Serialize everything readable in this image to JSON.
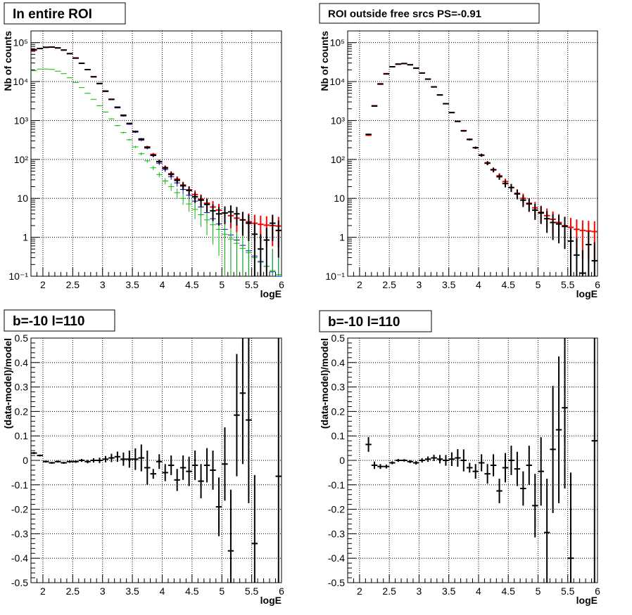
{
  "chart_data": [
    {
      "type": "scatter",
      "title": "In entire ROI",
      "xlabel": "logE",
      "ylabel": "Nb of counts",
      "xlim": [
        1.8,
        6.0
      ],
      "ylim": [
        0.1,
        200000
      ],
      "yscale": "log",
      "grid": true,
      "x_ticks": [
        "2",
        "2.5",
        "3",
        "3.5",
        "4",
        "4.5",
        "5",
        "5.5",
        "6"
      ],
      "y_ticks": [
        "10⁻¹",
        "1",
        "10",
        "10²",
        "10³",
        "10⁴",
        "10⁵"
      ],
      "series": [
        {
          "color": "#0000cc",
          "x": [
            1.85,
            1.95,
            2.05,
            2.15,
            2.25,
            2.35,
            2.45,
            2.55,
            2.65,
            2.75,
            2.85,
            2.95,
            3.05,
            3.15,
            3.25,
            3.35,
            3.45,
            3.55,
            3.65,
            3.75,
            3.85,
            3.95,
            4.05,
            4.15,
            4.25,
            4.35,
            4.45,
            4.55,
            4.65,
            4.75,
            4.85,
            4.95,
            5.05,
            5.15,
            5.25,
            5.35,
            5.45,
            5.55,
            5.65,
            5.75,
            5.85,
            5.95
          ],
          "y": [
            63000,
            70000,
            75000,
            76000,
            73000,
            64000,
            52000,
            40000,
            29000,
            20000,
            13000,
            8700,
            5500,
            3400,
            2100,
            1300,
            800,
            500,
            310,
            195,
            125,
            80,
            55,
            36,
            25,
            17,
            12,
            8.5,
            6,
            4.3,
            3,
            2.2,
            1.6,
            1.15,
            0.85,
            0.62,
            0.45,
            0.33,
            0.24,
            0.18,
            0.13,
            0.1
          ]
        },
        {
          "color": "#00bb00",
          "x": [
            1.85,
            1.95,
            2.05,
            2.15,
            2.25,
            2.35,
            2.45,
            2.55,
            2.65,
            2.75,
            2.85,
            2.95,
            3.05,
            3.15,
            3.25,
            3.35,
            3.45,
            3.55,
            3.65,
            3.75,
            3.85,
            3.95,
            4.05,
            4.15,
            4.25,
            4.35,
            4.45,
            4.55,
            4.65,
            4.75,
            4.85,
            4.95,
            5.05,
            5.15,
            5.25,
            5.35,
            5.45,
            5.55,
            5.65,
            5.75,
            5.85,
            5.95
          ],
          "y": [
            19000,
            21000,
            21000,
            20500,
            18500,
            16000,
            12500,
            9500,
            7000,
            5000,
            3500,
            2400,
            1650,
            1100,
            740,
            490,
            320,
            210,
            140,
            92,
            61,
            41,
            28,
            20,
            14,
            10,
            7.2,
            5.2,
            3.8,
            2.8,
            2.1,
            1.6,
            1.2,
            0.9,
            0.7,
            0.52,
            0.4,
            0.3,
            0.23,
            0.18,
            0.14,
            0.11
          ]
        },
        {
          "color": "#ff0000",
          "x": [
            1.85,
            1.95,
            2.05,
            2.15,
            2.25,
            2.35,
            2.45,
            2.55,
            2.65,
            2.75,
            2.85,
            2.95,
            3.05,
            3.15,
            3.25,
            3.35,
            3.45,
            3.55,
            3.65,
            3.75,
            3.85,
            3.95,
            4.05,
            4.15,
            4.25,
            4.35,
            4.45,
            4.55,
            4.65,
            4.75,
            4.85,
            4.95,
            5.05,
            5.15,
            5.25,
            5.35,
            5.45,
            5.55,
            5.65,
            5.75,
            5.85,
            5.95
          ],
          "y": [
            64000,
            71000,
            76000,
            77000,
            73500,
            64500,
            52500,
            40500,
            29500,
            20300,
            13300,
            8900,
            5700,
            3500,
            2200,
            1360,
            840,
            525,
            330,
            210,
            135,
            88,
            62,
            43,
            31,
            22,
            16.5,
            12.5,
            9.5,
            7.5,
            6,
            5,
            4.2,
            3.6,
            3.1,
            2.8,
            2.5,
            2.3,
            2.15,
            2.05,
            2,
            1.95
          ],
          "err": [
            250,
            270,
            280,
            280,
            270,
            250,
            230,
            200,
            170,
            140,
            115,
            95,
            75,
            60,
            47,
            37,
            29,
            23,
            18,
            14.5,
            11.6,
            9.4,
            7.9,
            6.6,
            5.6,
            4.7,
            4.1,
            3.5,
            3.1,
            2.7,
            2.5,
            2.2,
            2.05,
            1.9,
            1.75,
            1.65,
            1.6,
            1.5,
            1.45,
            1.43,
            1.41,
            1.4
          ]
        },
        {
          "color": "#000000",
          "x": [
            1.85,
            1.95,
            2.05,
            2.15,
            2.25,
            2.35,
            2.45,
            2.55,
            2.65,
            2.75,
            2.85,
            2.95,
            3.05,
            3.15,
            3.25,
            3.35,
            3.45,
            3.55,
            3.65,
            3.75,
            3.85,
            3.95,
            4.05,
            4.15,
            4.25,
            4.35,
            4.45,
            4.55,
            4.65,
            4.75,
            4.85,
            4.95,
            5.05,
            5.15,
            5.25,
            5.35,
            5.45,
            5.55,
            5.65,
            5.75,
            5.85,
            5.95
          ],
          "y": [
            66000,
            70500,
            76000,
            77000,
            73000,
            64500,
            52000,
            40000,
            29500,
            20300,
            13300,
            8900,
            5700,
            3500,
            2200,
            1370,
            840,
            525,
            335,
            203,
            128,
            88,
            60,
            41,
            29,
            21,
            16,
            11,
            9,
            7,
            4.8,
            4,
            4.2,
            4.5,
            4,
            2.8,
            2.3,
            1.2,
            0.5,
            0.85,
            2.3,
            1.5
          ],
          "err": [
            260,
            270,
            280,
            280,
            270,
            255,
            230,
            200,
            170,
            140,
            115,
            95,
            75,
            59,
            47,
            37,
            29,
            23,
            18,
            14.2,
            11.3,
            9.4,
            7.7,
            6.4,
            5.4,
            4.6,
            4,
            3.3,
            3,
            2.6,
            2.2,
            2,
            2,
            2.1,
            2,
            1.7,
            1.5,
            1.1,
            0.7,
            0.9,
            1.5,
            1.2
          ]
        }
      ]
    },
    {
      "type": "scatter",
      "title": "ROI outside free srcs PS=-0.91",
      "xlabel": "logE",
      "ylabel": "Nb of counts",
      "xlim": [
        1.8,
        6.0
      ],
      "ylim": [
        0.1,
        200000
      ],
      "yscale": "log",
      "grid": true,
      "x_ticks": [
        "2",
        "2.5",
        "3",
        "3.5",
        "4",
        "4.5",
        "5",
        "5.5",
        "6"
      ],
      "y_ticks": [
        "10⁻¹",
        "1",
        "10",
        "10²",
        "10³",
        "10⁴",
        "10⁵"
      ],
      "series": [
        {
          "color": "#ff0000",
          "x": [
            2.15,
            2.25,
            2.35,
            2.45,
            2.55,
            2.65,
            2.75,
            2.85,
            2.95,
            3.05,
            3.15,
            3.25,
            3.35,
            3.45,
            3.55,
            3.65,
            3.75,
            3.85,
            3.95,
            4.05,
            4.15,
            4.25,
            4.35,
            4.45,
            4.55,
            4.65,
            4.75,
            4.85,
            4.95,
            5.05,
            5.15,
            5.25,
            5.35,
            5.45,
            5.55,
            5.65,
            5.75,
            5.85,
            5.95
          ],
          "y": [
            420,
            2400,
            8800,
            16000,
            24000,
            28000,
            29000,
            27000,
            22000,
            16500,
            11500,
            7300,
            4500,
            2700,
            1600,
            950,
            550,
            330,
            200,
            130,
            82,
            55,
            38,
            27,
            19,
            13.5,
            10,
            7.5,
            5.7,
            4.4,
            3.6,
            2.9,
            2.4,
            2,
            1.8,
            1.6,
            1.5,
            1.45,
            1.4
          ],
          "err": [
            20,
            49,
            94,
            126,
            155,
            167,
            170,
            164,
            148,
            128,
            107,
            85,
            67,
            52,
            40,
            31,
            23,
            18,
            14,
            11.4,
            9,
            7.4,
            6.2,
            5.2,
            4.4,
            3.7,
            3.2,
            2.7,
            2.4,
            2.1,
            1.9,
            1.7,
            1.55,
            1.4,
            1.35,
            1.27,
            1.22,
            1.2,
            1.18
          ]
        },
        {
          "color": "#000000",
          "x": [
            2.15,
            2.25,
            2.35,
            2.45,
            2.55,
            2.65,
            2.75,
            2.85,
            2.95,
            3.05,
            3.15,
            3.25,
            3.35,
            3.45,
            3.55,
            3.65,
            3.75,
            3.85,
            3.95,
            4.05,
            4.15,
            4.25,
            4.35,
            4.45,
            4.55,
            4.65,
            4.75,
            4.85,
            4.95,
            5.05,
            5.15,
            5.25,
            5.35,
            5.45,
            5.55,
            5.65,
            5.75,
            5.85,
            5.95
          ],
          "y": [
            440,
            2350,
            8600,
            15700,
            24000,
            28100,
            29100,
            27000,
            22200,
            16600,
            11600,
            7300,
            4550,
            2700,
            1600,
            950,
            540,
            325,
            200,
            128,
            80,
            54,
            36,
            24,
            19,
            13,
            9,
            7.2,
            5,
            4.2,
            3,
            2.4,
            2.2,
            1.9,
            0.8,
            0.35,
            0.12,
            0.65,
            0.25
          ],
          "err": [
            21,
            48,
            93,
            125,
            155,
            168,
            171,
            164,
            149,
            129,
            108,
            85,
            67,
            52,
            40,
            31,
            23,
            18,
            14,
            11.3,
            8.9,
            7.3,
            6,
            4.9,
            4.4,
            3.6,
            3,
            2.7,
            2.2,
            2,
            1.7,
            1.55,
            1.5,
            1.4,
            0.9,
            0.6,
            0.35,
            0.8,
            0.5
          ]
        }
      ]
    },
    {
      "type": "scatter",
      "title": "b=-10 l=110",
      "xlabel": "logE",
      "ylabel": "(data-model)/model",
      "xlim": [
        1.8,
        6.0
      ],
      "ylim": [
        -0.5,
        0.5
      ],
      "grid": true,
      "x_ticks": [
        "2",
        "2.5",
        "3",
        "3.5",
        "4",
        "4.5",
        "5",
        "5.5",
        "6"
      ],
      "y_ticks": [
        "-0.5",
        "-0.4",
        "-0.3",
        "-0.2",
        "-0.1",
        "0",
        "0.1",
        "0.2",
        "0.3",
        "0.4",
        "0.5"
      ],
      "series": [
        {
          "color": "#000000",
          "x": [
            1.85,
            1.95,
            2.05,
            2.15,
            2.25,
            2.35,
            2.45,
            2.55,
            2.65,
            2.75,
            2.85,
            2.95,
            3.05,
            3.15,
            3.25,
            3.35,
            3.45,
            3.55,
            3.65,
            3.75,
            3.85,
            3.95,
            4.05,
            4.15,
            4.25,
            4.35,
            4.45,
            4.55,
            4.65,
            4.75,
            4.85,
            4.95,
            5.05,
            5.15,
            5.25,
            5.35,
            5.45,
            5.55,
            5.95
          ],
          "y": [
            0.03,
            0.02,
            -0.005,
            -0.01,
            -0.005,
            -0.01,
            -0.005,
            -0.005,
            0.0,
            -0.005,
            0.0,
            0.0,
            0.005,
            0.01,
            0.015,
            0.005,
            0.005,
            0.005,
            0.01,
            -0.03,
            -0.055,
            -0.005,
            -0.05,
            -0.02,
            -0.08,
            -0.03,
            -0.045,
            -0.02,
            -0.085,
            -0.02,
            -0.04,
            -0.19,
            -0.015,
            -0.37,
            0.185,
            0.275,
            0.165,
            -0.34,
            -0.065
          ],
          "err": [
            0.004,
            0.004,
            0.004,
            0.004,
            0.004,
            0.004,
            0.005,
            0.005,
            0.006,
            0.007,
            0.009,
            0.011,
            0.013,
            0.017,
            0.021,
            0.027,
            0.035,
            0.044,
            0.055,
            0.07,
            0.02,
            0.03,
            0.035,
            0.04,
            0.045,
            0.05,
            0.06,
            0.06,
            0.07,
            0.07,
            0.08,
            0.12,
            0.15,
            0.25,
            0.25,
            0.29,
            0.34,
            0.28,
            0.7
          ],
          "xerr": 0.05
        }
      ]
    },
    {
      "type": "scatter",
      "title": "b=-10 l=110",
      "xlabel": "logE",
      "ylabel": "(data-model)/model",
      "xlim": [
        1.8,
        6.0
      ],
      "ylim": [
        -0.5,
        0.5
      ],
      "grid": true,
      "x_ticks": [
        "2",
        "2.5",
        "3",
        "3.5",
        "4",
        "4.5",
        "5",
        "5.5",
        "6"
      ],
      "y_ticks": [
        "-0.5",
        "-0.4",
        "-0.3",
        "-0.2",
        "-0.1",
        "0",
        "0.1",
        "0.2",
        "0.3",
        "0.4",
        "0.5"
      ],
      "series": [
        {
          "color": "#000000",
          "x": [
            2.15,
            2.25,
            2.35,
            2.45,
            2.55,
            2.65,
            2.75,
            2.85,
            2.95,
            3.05,
            3.15,
            3.25,
            3.35,
            3.45,
            3.55,
            3.65,
            3.75,
            3.85,
            3.95,
            4.05,
            4.15,
            4.25,
            4.35,
            4.45,
            4.55,
            4.65,
            4.75,
            4.85,
            4.95,
            5.05,
            5.15,
            5.25,
            5.35,
            5.45,
            5.55,
            5.95
          ],
          "y": [
            0.065,
            -0.02,
            -0.025,
            -0.025,
            -0.01,
            0.0,
            0.0,
            -0.005,
            -0.01,
            0.0,
            0.005,
            0.01,
            0.005,
            0.0,
            0.005,
            0.01,
            0.0,
            -0.03,
            -0.045,
            -0.01,
            -0.055,
            -0.02,
            -0.125,
            -0.03,
            0.0,
            -0.035,
            -0.115,
            -0.02,
            -0.185,
            -0.045,
            -0.295,
            0.045,
            0.125,
            0.215,
            -0.4,
            0.08
          ],
          "err": [
            0.03,
            0.015,
            0.01,
            0.008,
            0.006,
            0.006,
            0.005,
            0.006,
            0.007,
            0.009,
            0.011,
            0.013,
            0.017,
            0.022,
            0.028,
            0.036,
            0.045,
            0.02,
            0.03,
            0.035,
            0.04,
            0.045,
            0.05,
            0.06,
            0.06,
            0.07,
            0.07,
            0.08,
            0.13,
            0.14,
            0.22,
            0.26,
            0.3,
            0.33,
            0.35,
            0.7
          ],
          "xerr": 0.05
        }
      ]
    }
  ]
}
